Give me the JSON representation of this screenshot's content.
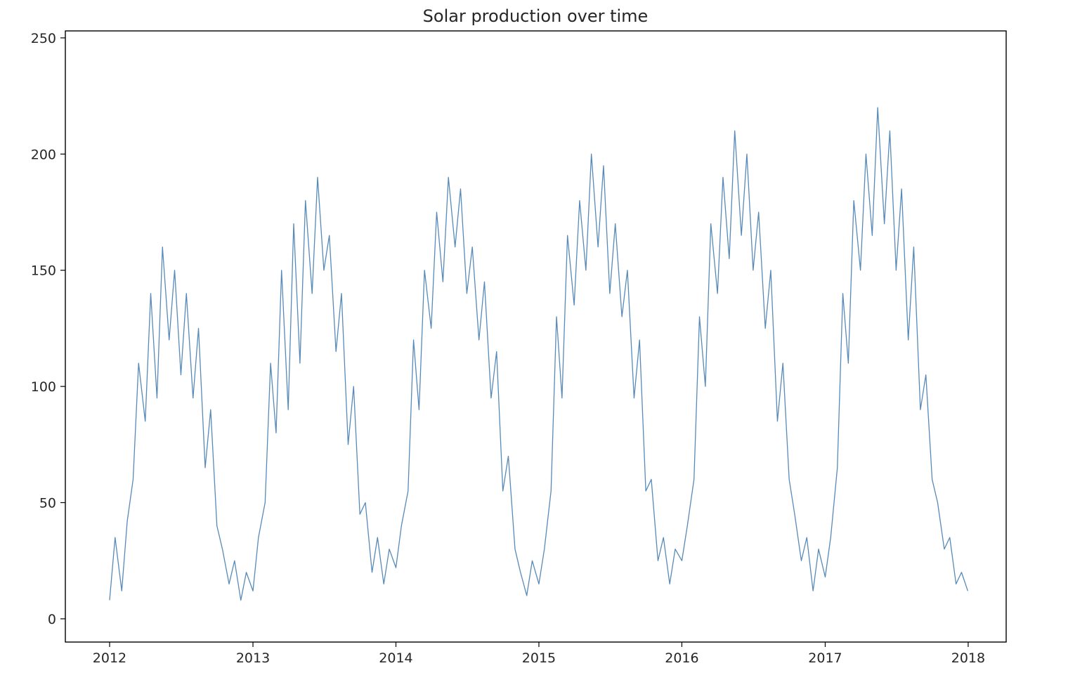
{
  "chart_data": {
    "type": "line",
    "title": "Solar production over time",
    "xlabel": "",
    "ylabel": "",
    "x_range": [
      "2011-09-10",
      "2018-04-08"
    ],
    "ylim": [
      -10,
      253
    ],
    "x_ticks": [
      "2012",
      "2013",
      "2014",
      "2015",
      "2016",
      "2017",
      "2018"
    ],
    "y_ticks": [
      "0",
      "50",
      "100",
      "150",
      "200",
      "250"
    ],
    "grid": false,
    "series": [
      {
        "color": "#3a75ad",
        "x": [
          "2012-01-01",
          "2012-01-15",
          "2012-02-01",
          "2012-02-15",
          "2012-03-01",
          "2012-03-15",
          "2012-04-01",
          "2012-04-15",
          "2012-05-01",
          "2012-05-15",
          "2012-06-01",
          "2012-06-15",
          "2012-07-01",
          "2012-07-15",
          "2012-08-01",
          "2012-08-15",
          "2012-09-01",
          "2012-09-15",
          "2012-10-01",
          "2012-10-15",
          "2012-11-01",
          "2012-11-15",
          "2012-12-01",
          "2012-12-15",
          "2013-01-01",
          "2013-01-15",
          "2013-02-01",
          "2013-02-15",
          "2013-03-01",
          "2013-03-15",
          "2013-04-01",
          "2013-04-15",
          "2013-05-01",
          "2013-05-15",
          "2013-06-01",
          "2013-06-15",
          "2013-07-01",
          "2013-07-15",
          "2013-08-01",
          "2013-08-15",
          "2013-09-01",
          "2013-09-15",
          "2013-10-01",
          "2013-10-15",
          "2013-11-01",
          "2013-11-15",
          "2013-12-01",
          "2013-12-15",
          "2014-01-01",
          "2014-01-15",
          "2014-02-01",
          "2014-02-15",
          "2014-03-01",
          "2014-03-15",
          "2014-04-01",
          "2014-04-15",
          "2014-05-01",
          "2014-05-15",
          "2014-06-01",
          "2014-06-15",
          "2014-07-01",
          "2014-07-15",
          "2014-08-01",
          "2014-08-15",
          "2014-09-01",
          "2014-09-15",
          "2014-10-01",
          "2014-10-15",
          "2014-11-01",
          "2014-11-15",
          "2014-12-01",
          "2014-12-15",
          "2015-01-01",
          "2015-01-15",
          "2015-02-01",
          "2015-02-15",
          "2015-03-01",
          "2015-03-15",
          "2015-04-01",
          "2015-04-15",
          "2015-05-01",
          "2015-05-15",
          "2015-06-01",
          "2015-06-15",
          "2015-07-01",
          "2015-07-15",
          "2015-08-01",
          "2015-08-15",
          "2015-09-01",
          "2015-09-15",
          "2015-10-01",
          "2015-10-15",
          "2015-11-01",
          "2015-11-15",
          "2015-12-01",
          "2015-12-15",
          "2016-01-01",
          "2016-01-15",
          "2016-02-01",
          "2016-02-15",
          "2016-03-01",
          "2016-03-15",
          "2016-04-01",
          "2016-04-15",
          "2016-05-01",
          "2016-05-15",
          "2016-06-01",
          "2016-06-15",
          "2016-07-01",
          "2016-07-15",
          "2016-08-01",
          "2016-08-15",
          "2016-09-01",
          "2016-09-15",
          "2016-10-01",
          "2016-10-15",
          "2016-11-01",
          "2016-11-15",
          "2016-12-01",
          "2016-12-15",
          "2017-01-01",
          "2017-01-15",
          "2017-02-01",
          "2017-02-15",
          "2017-03-01",
          "2017-03-15",
          "2017-04-01",
          "2017-04-15",
          "2017-05-01",
          "2017-05-15",
          "2017-06-01",
          "2017-06-15",
          "2017-07-01",
          "2017-07-15",
          "2017-08-01",
          "2017-08-15",
          "2017-09-01",
          "2017-09-15",
          "2017-10-01",
          "2017-10-15",
          "2017-11-01",
          "2017-11-15",
          "2017-12-01",
          "2017-12-15",
          "2017-12-31"
        ],
        "y": [
          8,
          35,
          12,
          42,
          60,
          110,
          85,
          140,
          95,
          160,
          120,
          150,
          105,
          140,
          95,
          125,
          65,
          90,
          40,
          30,
          15,
          25,
          8,
          20,
          12,
          35,
          50,
          110,
          80,
          150,
          90,
          170,
          110,
          180,
          140,
          190,
          150,
          165,
          115,
          140,
          75,
          100,
          45,
          50,
          20,
          35,
          15,
          30,
          22,
          40,
          55,
          120,
          90,
          150,
          125,
          175,
          145,
          190,
          160,
          185,
          140,
          160,
          120,
          145,
          95,
          115,
          55,
          70,
          30,
          20,
          10,
          25,
          15,
          30,
          55,
          130,
          95,
          165,
          135,
          180,
          150,
          200,
          160,
          195,
          140,
          170,
          130,
          150,
          95,
          120,
          55,
          60,
          25,
          35,
          15,
          30,
          25,
          40,
          60,
          130,
          100,
          170,
          140,
          190,
          155,
          210,
          165,
          200,
          150,
          175,
          125,
          150,
          85,
          110,
          60,
          45,
          25,
          35,
          12,
          30,
          18,
          35,
          65,
          140,
          110,
          180,
          150,
          200,
          165,
          220,
          170,
          210,
          150,
          185,
          120,
          160,
          90,
          105,
          60,
          50,
          30,
          35,
          15,
          20,
          12
        ]
      }
    ]
  }
}
